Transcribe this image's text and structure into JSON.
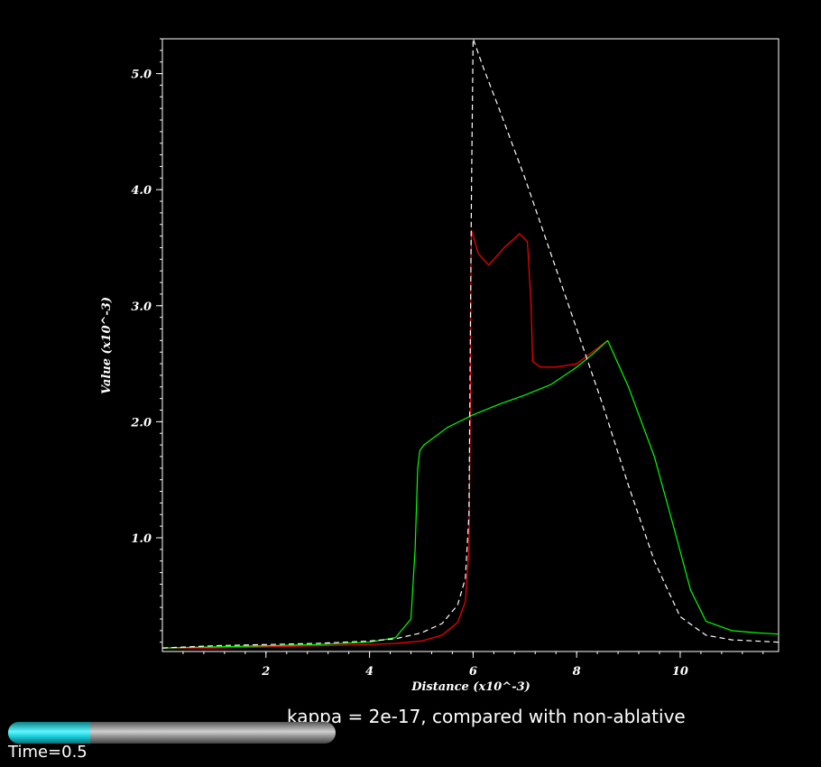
{
  "chart_data": {
    "type": "line",
    "title": "",
    "xlabel": "Distance (x10^-3)",
    "ylabel": "Value (x10^-3)",
    "xlim": [
      0.0,
      11.9
    ],
    "ylim": [
      0.02,
      5.3
    ],
    "xticks": [
      2,
      4,
      6,
      8,
      10
    ],
    "xtick_labels": [
      "2",
      "4",
      "6",
      "8",
      "10"
    ],
    "yticks": [
      1.0,
      2.0,
      3.0,
      4.0,
      5.0
    ],
    "ytick_labels": [
      "1.0",
      "2.0",
      "3.0",
      "4.0",
      "5.0"
    ],
    "grid": false,
    "legend": "none",
    "series": [
      {
        "color": "#ff0000",
        "style": "solid",
        "x": [
          0.0,
          1.0,
          2.0,
          3.0,
          4.0,
          4.5,
          5.0,
          5.4,
          5.7,
          5.85,
          5.92,
          5.95,
          5.96,
          5.97,
          6.1,
          6.3,
          6.6,
          6.9,
          7.05,
          7.12,
          7.15,
          7.3,
          7.6,
          8.0,
          8.3,
          8.6
        ],
        "y": [
          0.05,
          0.05,
          0.06,
          0.07,
          0.08,
          0.09,
          0.11,
          0.16,
          0.27,
          0.45,
          0.9,
          2.3,
          3.4,
          3.65,
          3.45,
          3.35,
          3.5,
          3.62,
          3.55,
          3.0,
          2.52,
          2.47,
          2.47,
          2.5,
          2.6,
          2.7
        ]
      },
      {
        "color": "#00ff00",
        "style": "solid",
        "x": [
          0.0,
          1.0,
          2.0,
          3.0,
          4.0,
          4.5,
          4.8,
          4.88,
          4.93,
          4.97,
          5.05,
          5.5,
          6.0,
          6.5,
          7.0,
          7.5,
          8.0,
          8.3,
          8.6,
          9.0,
          9.5,
          9.9,
          10.2,
          10.5,
          11.0,
          11.5,
          11.9
        ],
        "y": [
          0.05,
          0.06,
          0.07,
          0.08,
          0.1,
          0.14,
          0.3,
          0.9,
          1.6,
          1.75,
          1.8,
          1.95,
          2.06,
          2.15,
          2.23,
          2.32,
          2.47,
          2.58,
          2.7,
          2.3,
          1.7,
          1.05,
          0.55,
          0.28,
          0.2,
          0.18,
          0.17
        ]
      },
      {
        "color": "#ffffff",
        "style": "dashed",
        "x": [
          0.0,
          1.0,
          2.0,
          3.0,
          4.0,
          4.5,
          5.0,
          5.4,
          5.7,
          5.85,
          5.92,
          5.97,
          6.0,
          6.2,
          6.5,
          7.0,
          7.5,
          8.0,
          8.5,
          9.0,
          9.5,
          10.0,
          10.5,
          11.0,
          11.9
        ],
        "y": [
          0.05,
          0.07,
          0.08,
          0.09,
          0.11,
          0.13,
          0.18,
          0.26,
          0.42,
          0.65,
          1.2,
          4.0,
          5.3,
          5.05,
          4.7,
          4.1,
          3.45,
          2.8,
          2.15,
          1.45,
          0.8,
          0.32,
          0.16,
          0.12,
          0.1
        ]
      }
    ]
  },
  "caption": "kappa = 2e-17, compared with non-ablative",
  "time_label": "Time=0.5",
  "time_progress": 0.5,
  "colors": {
    "background": "#000000",
    "axes": "#ffffff",
    "progress_fill": "#2fe6f0",
    "progress_track": "#a0a0a0"
  }
}
